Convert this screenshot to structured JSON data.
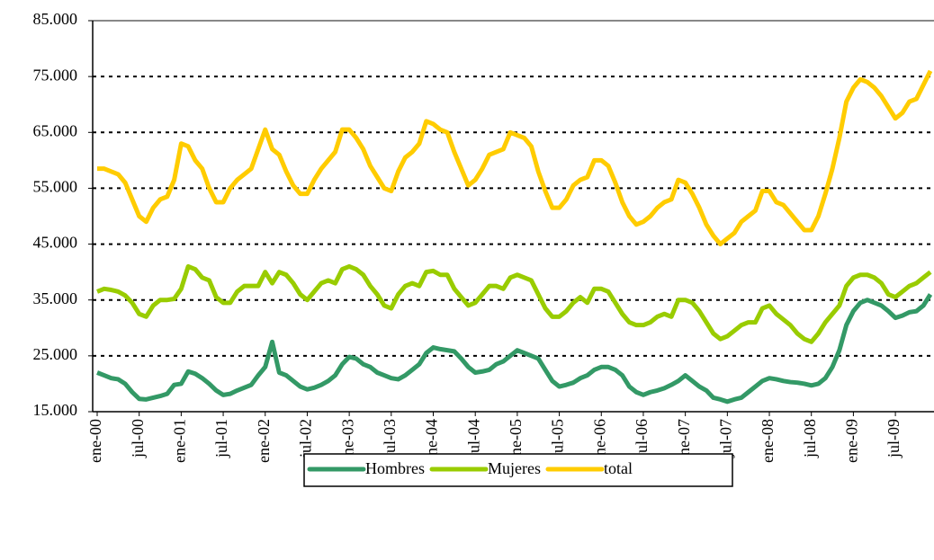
{
  "chart_data": {
    "type": "line",
    "categories": [
      "ene-00",
      null,
      null,
      null,
      null,
      null,
      "jul-00",
      null,
      null,
      null,
      null,
      null,
      "ene-01",
      null,
      null,
      null,
      null,
      null,
      "jul-01",
      null,
      null,
      null,
      null,
      null,
      "ene-02",
      null,
      null,
      null,
      null,
      null,
      "jul-02",
      null,
      null,
      null,
      null,
      null,
      "ene-03",
      null,
      null,
      null,
      null,
      null,
      "jul-03",
      null,
      null,
      null,
      null,
      null,
      "ene-04",
      null,
      null,
      null,
      null,
      null,
      "jul-04",
      null,
      null,
      null,
      null,
      null,
      "ene-05",
      null,
      null,
      null,
      null,
      null,
      "jul-05",
      null,
      null,
      null,
      null,
      null,
      "ene-06",
      null,
      null,
      null,
      null,
      null,
      "jul-06",
      null,
      null,
      null,
      null,
      null,
      "ene-07",
      null,
      null,
      null,
      null,
      null,
      "jul-07",
      null,
      null,
      null,
      null,
      null,
      "ene-08",
      null,
      null,
      null,
      null,
      null,
      "jul-08",
      null,
      null,
      null,
      null,
      null,
      "ene-09",
      null,
      null,
      null,
      null,
      null,
      "jul-09",
      null,
      null,
      null,
      null,
      null
    ],
    "series": [
      {
        "name": "Hombres",
        "color": "#339966",
        "values": [
          22000,
          21500,
          21000,
          20800,
          20000,
          18500,
          17300,
          17200,
          17500,
          17800,
          18200,
          19800,
          20000,
          22200,
          21800,
          21000,
          20000,
          18800,
          18000,
          18200,
          18800,
          19300,
          19800,
          21500,
          23000,
          27500,
          22000,
          21500,
          20500,
          19500,
          19000,
          19300,
          19800,
          20500,
          21500,
          23500,
          24800,
          24500,
          23500,
          23000,
          22000,
          21500,
          21000,
          20800,
          21500,
          22500,
          23500,
          25500,
          26500,
          26200,
          26000,
          25800,
          24500,
          23000,
          22000,
          22200,
          22500,
          23500,
          24000,
          25000,
          26000,
          25500,
          25000,
          24500,
          22500,
          20500,
          19500,
          19800,
          20200,
          21000,
          21500,
          22500,
          23000,
          23000,
          22500,
          21500,
          19500,
          18500,
          18000,
          18500,
          18800,
          19200,
          19800,
          20500,
          21500,
          20500,
          19500,
          18800,
          17500,
          17200,
          16800,
          17200,
          17500,
          18500,
          19500,
          20500,
          21000,
          20800,
          20500,
          20300,
          20200,
          20000,
          19700,
          20000,
          21000,
          23000,
          26000,
          30500,
          33000,
          34500,
          35000,
          34500,
          34000,
          33000,
          31800,
          32200,
          32800,
          33000,
          34000,
          36000
        ]
      },
      {
        "name": "Mujeres",
        "color": "#99cc00",
        "values": [
          36500,
          37000,
          36800,
          36500,
          35800,
          34500,
          32500,
          32000,
          34000,
          35000,
          35000,
          35200,
          37000,
          41000,
          40500,
          39000,
          38500,
          35500,
          34500,
          34500,
          36500,
          37500,
          37500,
          37500,
          40000,
          38000,
          40000,
          39500,
          38000,
          36000,
          35000,
          36500,
          38000,
          38500,
          38000,
          40500,
          41000,
          40500,
          39500,
          37500,
          36000,
          34000,
          33500,
          36000,
          37500,
          38000,
          37500,
          40000,
          40200,
          39500,
          39500,
          37000,
          35500,
          34000,
          34500,
          36000,
          37500,
          37500,
          37000,
          39000,
          39500,
          39000,
          38500,
          36000,
          33500,
          32000,
          32000,
          33000,
          34500,
          35500,
          34500,
          37000,
          37000,
          36500,
          34500,
          32500,
          31000,
          30500,
          30500,
          31000,
          32000,
          32500,
          32000,
          35000,
          35000,
          34500,
          33000,
          31000,
          29000,
          28000,
          28500,
          29500,
          30500,
          31000,
          31000,
          33500,
          34000,
          32500,
          31500,
          30500,
          29000,
          28000,
          27500,
          29000,
          31000,
          32500,
          34000,
          37500,
          39000,
          39500,
          39500,
          39000,
          38000,
          36000,
          35500,
          36500,
          37500,
          38000,
          39000,
          40000
        ]
      },
      {
        "name": "total",
        "color": "#ffcc00",
        "values": [
          58500,
          58500,
          58000,
          57500,
          56000,
          53000,
          50000,
          49000,
          51500,
          53000,
          53500,
          56500,
          63000,
          62500,
          60000,
          58500,
          55000,
          52500,
          52500,
          55000,
          56500,
          57500,
          58500,
          62000,
          65500,
          62000,
          61000,
          58000,
          55500,
          54000,
          54000,
          56500,
          58500,
          60000,
          61500,
          65500,
          65500,
          64000,
          62000,
          59000,
          57000,
          55000,
          54500,
          58000,
          60500,
          61500,
          63000,
          67000,
          66500,
          65500,
          65000,
          61500,
          58500,
          55500,
          56500,
          58500,
          61000,
          61500,
          62000,
          65000,
          64500,
          64000,
          62500,
          58000,
          54500,
          51500,
          51500,
          53000,
          55500,
          56500,
          57000,
          60000,
          60000,
          59000,
          56000,
          52500,
          50000,
          48500,
          49000,
          50000,
          51500,
          52500,
          53000,
          56500,
          56000,
          54000,
          51500,
          48500,
          46500,
          45000,
          46000,
          47000,
          49000,
          50000,
          51000,
          54500,
          54500,
          52500,
          52000,
          50500,
          49000,
          47500,
          47500,
          50000,
          54000,
          58500,
          64000,
          70500,
          73000,
          74500,
          74000,
          73000,
          71500,
          69500,
          67500,
          68500,
          70500,
          71000,
          73500,
          76000
        ]
      }
    ],
    "ylim": [
      15000,
      85000
    ],
    "yticks": [
      {
        "value": 15000,
        "label": "15.000"
      },
      {
        "value": 25000,
        "label": "25.000"
      },
      {
        "value": 35000,
        "label": "35.000"
      },
      {
        "value": 45000,
        "label": "45.000"
      },
      {
        "value": 55000,
        "label": "55.000"
      },
      {
        "value": 65000,
        "label": "65.000"
      },
      {
        "value": 75000,
        "label": "75.000"
      },
      {
        "value": 85000,
        "label": "85.000"
      }
    ],
    "grid": true,
    "legend": "bottom"
  }
}
